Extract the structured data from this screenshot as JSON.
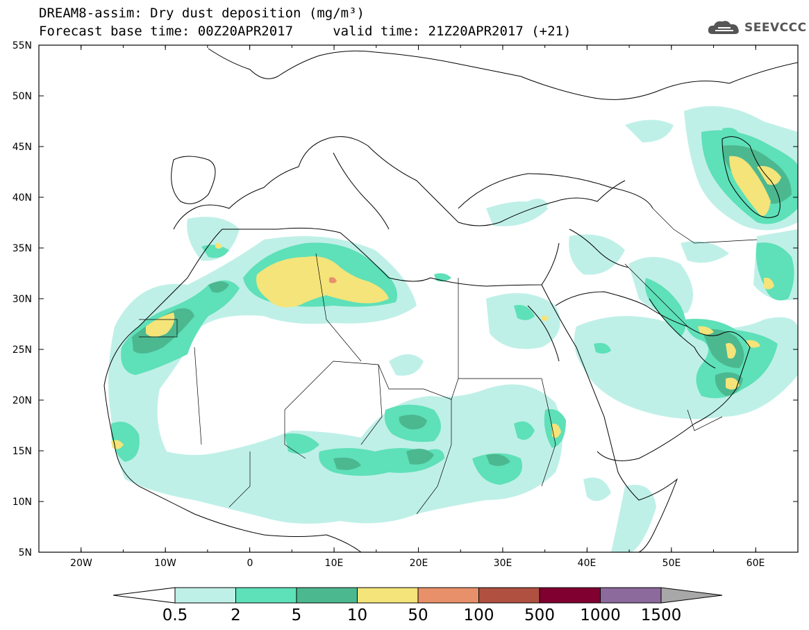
{
  "header": {
    "title_line1": "DREAM8-assim: Dry dust deposition (mg/m³)",
    "title_line2": "Forecast base time: 00Z20APR2017     valid time: 21Z20APR2017 (+21)",
    "logo_text": "SEEVCCC"
  },
  "map": {
    "lon_range": [
      -25,
      65
    ],
    "lat_range": [
      5,
      55
    ],
    "lat_ticks": [
      "55N",
      "50N",
      "45N",
      "40N",
      "35N",
      "30N",
      "25N",
      "20N",
      "15N",
      "10N",
      "5N"
    ],
    "lon_ticks": [
      "20W",
      "10W",
      "0",
      "10E",
      "20E",
      "30E",
      "40E",
      "50E",
      "60E"
    ]
  },
  "colorbar": {
    "labels": [
      "0.5",
      "2",
      "5",
      "10",
      "50",
      "100",
      "500",
      "1000",
      "1500"
    ],
    "colors": [
      "#bff0e8",
      "#5ee0b8",
      "#4cb890",
      "#f4e47a",
      "#e8906a",
      "#b05040",
      "#800030",
      "#8c6a9c",
      "#a8a8a8"
    ]
  }
}
